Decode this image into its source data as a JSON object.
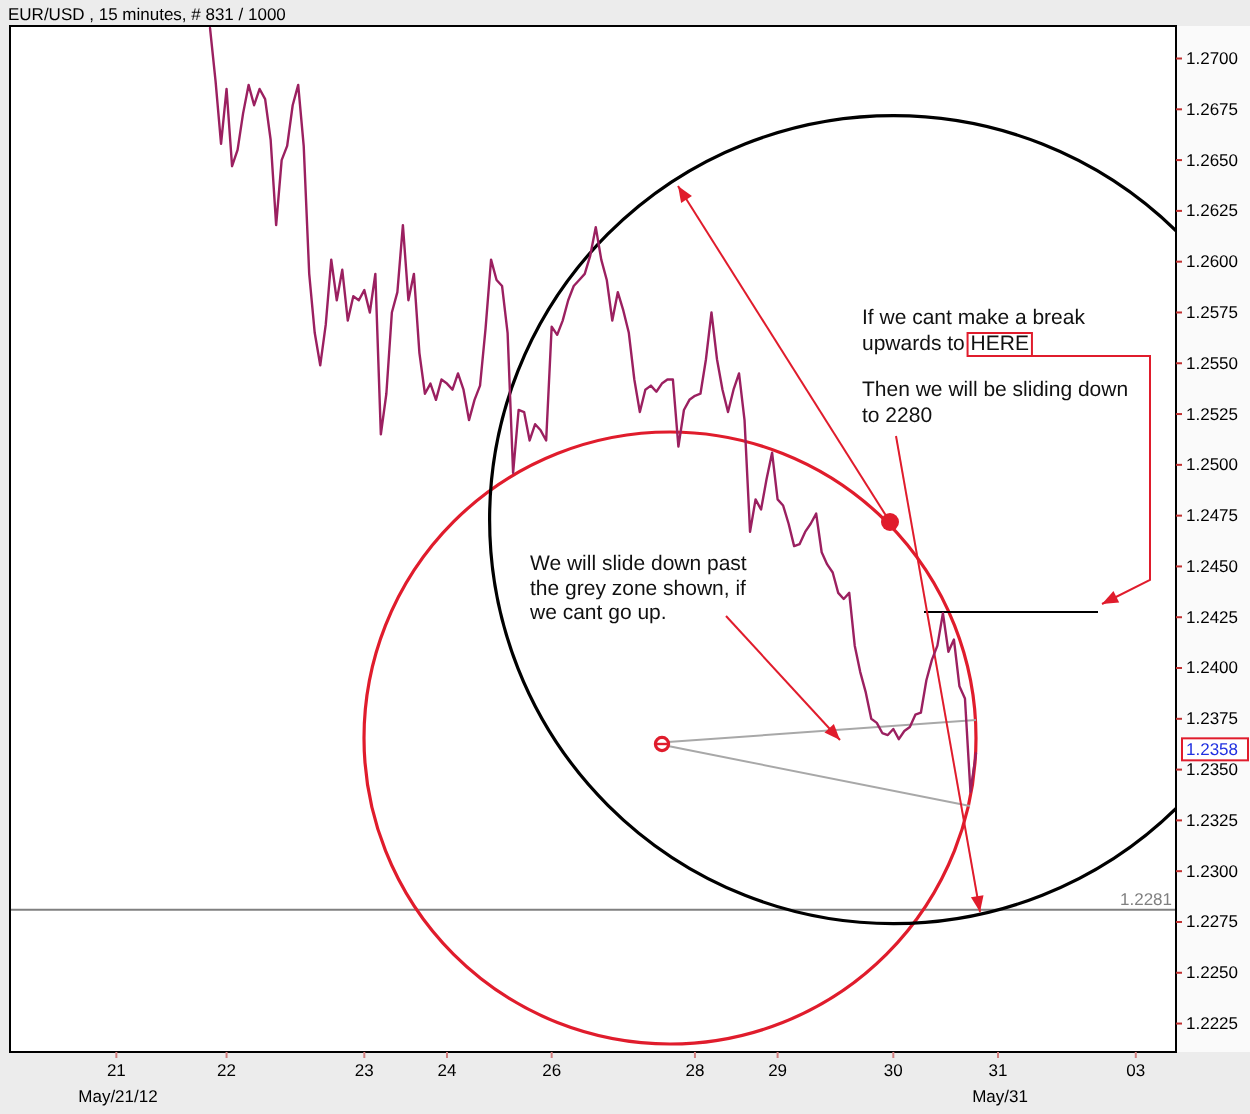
{
  "chart_data": {
    "type": "line",
    "title": "EUR/USD , 15 minutes, # 831 / 1000",
    "categories": [
      null,
      null,
      null,
      null,
      null,
      null,
      null,
      null,
      null,
      null,
      null,
      null,
      null,
      null,
      null,
      null,
      null,
      null,
      null,
      "21",
      null,
      null,
      null,
      null,
      null,
      null,
      null,
      null,
      null,
      null,
      null,
      null,
      null,
      null,
      null,
      null,
      null,
      null,
      null,
      "22",
      null,
      null,
      null,
      null,
      null,
      null,
      null,
      null,
      null,
      null,
      null,
      null,
      null,
      null,
      null,
      null,
      null,
      null,
      null,
      null,
      null,
      null,
      null,
      null,
      "23",
      null,
      null,
      null,
      null,
      null,
      null,
      null,
      null,
      null,
      null,
      null,
      null,
      null,
      null,
      "24",
      null,
      null,
      null,
      null,
      null,
      null,
      null,
      null,
      null,
      null,
      null,
      null,
      null,
      null,
      null,
      null,
      null,
      null,
      "26",
      null,
      null,
      null,
      null,
      null,
      null,
      null,
      null,
      null,
      null,
      null,
      null,
      null,
      null,
      null,
      null,
      null,
      null,
      null,
      null,
      null,
      null,
      null,
      null,
      null,
      "28",
      null,
      null,
      null,
      null,
      null,
      null,
      null,
      null,
      null,
      null,
      null,
      null,
      null,
      null,
      "29",
      null,
      null,
      null,
      null,
      null,
      null,
      null,
      null,
      null,
      null,
      null,
      null,
      null,
      null,
      null,
      null,
      null,
      null,
      null,
      null,
      "30",
      null,
      null,
      null,
      null,
      null,
      null,
      null,
      null,
      null,
      null,
      null,
      null,
      null,
      null,
      null,
      null,
      null,
      null,
      "31",
      null,
      null,
      null,
      null,
      null,
      null,
      null,
      null,
      null,
      null,
      null,
      null,
      null,
      null,
      null,
      null,
      null,
      null,
      null,
      null,
      null,
      null,
      null,
      null,
      "03",
      null,
      null,
      null,
      null,
      null,
      null,
      null
    ],
    "values": [
      null,
      null,
      null,
      null,
      null,
      null,
      null,
      null,
      null,
      null,
      null,
      null,
      null,
      null,
      null,
      null,
      null,
      null,
      null,
      null,
      null,
      null,
      null,
      null,
      null,
      null,
      null,
      null,
      null,
      null,
      null,
      null,
      null,
      null,
      null,
      null,
      1.2715,
      1.2689,
      1.2658,
      1.2685,
      1.2647,
      1.2655,
      1.2673,
      1.2687,
      1.2677,
      1.2685,
      1.268,
      1.266,
      1.2618,
      1.265,
      1.2657,
      1.2677,
      1.2687,
      1.2657,
      1.2594,
      1.2565,
      1.2549,
      1.2569,
      1.2601,
      1.2581,
      1.2596,
      1.2571,
      1.2583,
      1.2581,
      1.2586,
      1.2575,
      1.2594,
      1.2515,
      1.2535,
      1.2575,
      1.2585,
      1.2618,
      1.2581,
      1.2594,
      1.2555,
      1.2535,
      1.254,
      1.2532,
      1.2542,
      1.254,
      1.2537,
      1.2545,
      1.2537,
      1.2522,
      1.2532,
      1.2539,
      1.2567,
      1.2601,
      1.2591,
      1.2588,
      1.2565,
      1.2496,
      1.2527,
      1.2526,
      1.2512,
      1.252,
      1.2517,
      1.2512,
      1.2568,
      1.2564,
      1.2571,
      1.2581,
      1.2588,
      1.2591,
      1.2594,
      1.2603,
      1.2617,
      1.2601,
      1.2591,
      1.2571,
      1.2585,
      1.2576,
      1.2565,
      1.2542,
      1.2526,
      1.2537,
      1.2539,
      1.2536,
      1.254,
      1.2542,
      1.2542,
      1.2509,
      1.2527,
      1.2532,
      1.2534,
      1.2535,
      1.2552,
      1.2575,
      1.2552,
      1.2537,
      1.2526,
      1.2537,
      1.2545,
      1.2522,
      1.2467,
      1.2483,
      1.2478,
      1.2493,
      1.2506,
      1.2483,
      1.248,
      1.2471,
      1.246,
      1.2461,
      1.2467,
      1.2471,
      1.2476,
      1.2457,
      1.2451,
      1.2447,
      1.2437,
      1.2434,
      1.2437,
      1.2411,
      1.2398,
      1.2388,
      1.2375,
      1.2373,
      1.2368,
      1.2367,
      1.237,
      1.2365,
      1.2369,
      1.2371,
      1.2377,
      1.2378,
      1.2394,
      1.2404,
      1.2411,
      1.2427,
      1.2408,
      1.2414,
      1.2391,
      1.2385,
      1.2339,
      1.2358,
      null,
      null,
      null,
      null,
      null,
      null,
      null,
      null,
      null,
      null,
      null,
      null,
      null,
      null,
      null,
      null,
      null,
      null,
      null,
      null,
      null,
      null,
      null,
      null,
      null,
      null,
      null,
      null,
      null,
      null,
      null,
      null,
      null,
      null,
      null,
      null
    ],
    "color": "#9b2060",
    "ylim": [
      1.2211,
      1.2716
    ],
    "yticks": [
      {
        "value": 1.2225,
        "label": "1.2225"
      },
      {
        "value": 1.225,
        "label": "1.2250"
      },
      {
        "value": 1.2275,
        "label": "1.2275"
      },
      {
        "value": 1.23,
        "label": "1.2300"
      },
      {
        "value": 1.2325,
        "label": "1.2325"
      },
      {
        "value": 1.235,
        "label": "1.2350"
      },
      {
        "value": 1.2375,
        "label": "1.2375"
      },
      {
        "value": 1.24,
        "label": "1.2400"
      },
      {
        "value": 1.2425,
        "label": "1.2425"
      },
      {
        "value": 1.245,
        "label": "1.2450"
      },
      {
        "value": 1.2475,
        "label": "1.2475"
      },
      {
        "value": 1.25,
        "label": "1.2500"
      },
      {
        "value": 1.2525,
        "label": "1.2525"
      },
      {
        "value": 1.255,
        "label": "1.2550"
      },
      {
        "value": 1.2575,
        "label": "1.2575"
      },
      {
        "value": 1.26,
        "label": "1.2600"
      },
      {
        "value": 1.2625,
        "label": "1.2625"
      },
      {
        "value": 1.265,
        "label": "1.2650"
      },
      {
        "value": 1.2675,
        "label": "1.2675"
      },
      {
        "value": 1.27,
        "label": "1.2700"
      }
    ],
    "ref_lines": [
      {
        "axis": "y",
        "value": 1.2281,
        "label": "1.2281",
        "color": "#808080"
      }
    ],
    "annotations": [
      "If we cant make a break upwards to HERE",
      "Then we will be sliding down to 2280",
      "We will slide down past the grey zone shown, if we cant go up.",
      "May/21/12",
      "May/31",
      "1.2358"
    ]
  }
}
